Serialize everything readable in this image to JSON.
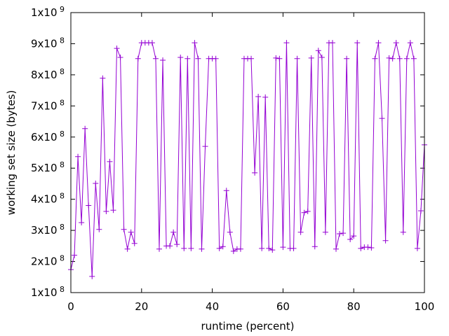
{
  "chart_data": {
    "type": "line",
    "title": "",
    "xlabel": "runtime (percent)",
    "ylabel": "working set size (bytes)",
    "xlim": [
      0,
      100
    ],
    "ylim": [
      100000000,
      1000000000
    ],
    "grid": false,
    "legend": "none",
    "series_color": "#9400d3",
    "x_ticks": [
      {
        "value": 0,
        "label": "0"
      },
      {
        "value": 20,
        "label": "20"
      },
      {
        "value": 40,
        "label": "40"
      },
      {
        "value": 60,
        "label": "60"
      },
      {
        "value": 80,
        "label": "80"
      },
      {
        "value": 100,
        "label": "100"
      }
    ],
    "y_ticks": [
      {
        "value": 100000000,
        "mantissa": "1x10",
        "exp": "8"
      },
      {
        "value": 200000000,
        "mantissa": "2x10",
        "exp": "8"
      },
      {
        "value": 300000000,
        "mantissa": "3x10",
        "exp": "8"
      },
      {
        "value": 400000000,
        "mantissa": "4x10",
        "exp": "8"
      },
      {
        "value": 500000000,
        "mantissa": "5x10",
        "exp": "8"
      },
      {
        "value": 600000000,
        "mantissa": "6x10",
        "exp": "8"
      },
      {
        "value": 700000000,
        "mantissa": "7x10",
        "exp": "8"
      },
      {
        "value": 800000000,
        "mantissa": "8x10",
        "exp": "8"
      },
      {
        "value": 900000000,
        "mantissa": "9x10",
        "exp": "8"
      },
      {
        "value": 1000000000,
        "mantissa": "1x10",
        "exp": "9"
      }
    ],
    "series": [
      {
        "name": "working set",
        "values_millions": [
          174,
          220,
          537,
          325,
          627,
          380,
          152,
          451,
          303,
          789,
          361,
          521,
          365,
          885,
          856,
          303,
          240,
          294,
          258,
          852,
          903,
          903,
          903,
          903,
          852,
          240,
          847,
          250,
          250,
          294,
          255,
          856,
          242,
          852,
          242,
          903,
          852,
          240,
          570,
          852,
          852,
          852,
          242,
          248,
          428,
          294,
          233,
          240,
          240,
          852,
          852,
          852,
          485,
          730,
          242,
          728,
          242,
          237,
          854,
          852,
          246,
          903,
          242,
          242,
          852,
          294,
          357,
          361,
          854,
          248,
          878,
          856,
          294,
          903,
          903,
          240,
          289,
          291,
          852,
          271,
          282,
          903,
          242,
          246,
          246,
          244,
          852,
          903,
          660,
          267,
          854,
          852,
          903,
          852,
          294,
          852,
          903,
          852,
          242,
          363,
          575
        ]
      }
    ]
  }
}
